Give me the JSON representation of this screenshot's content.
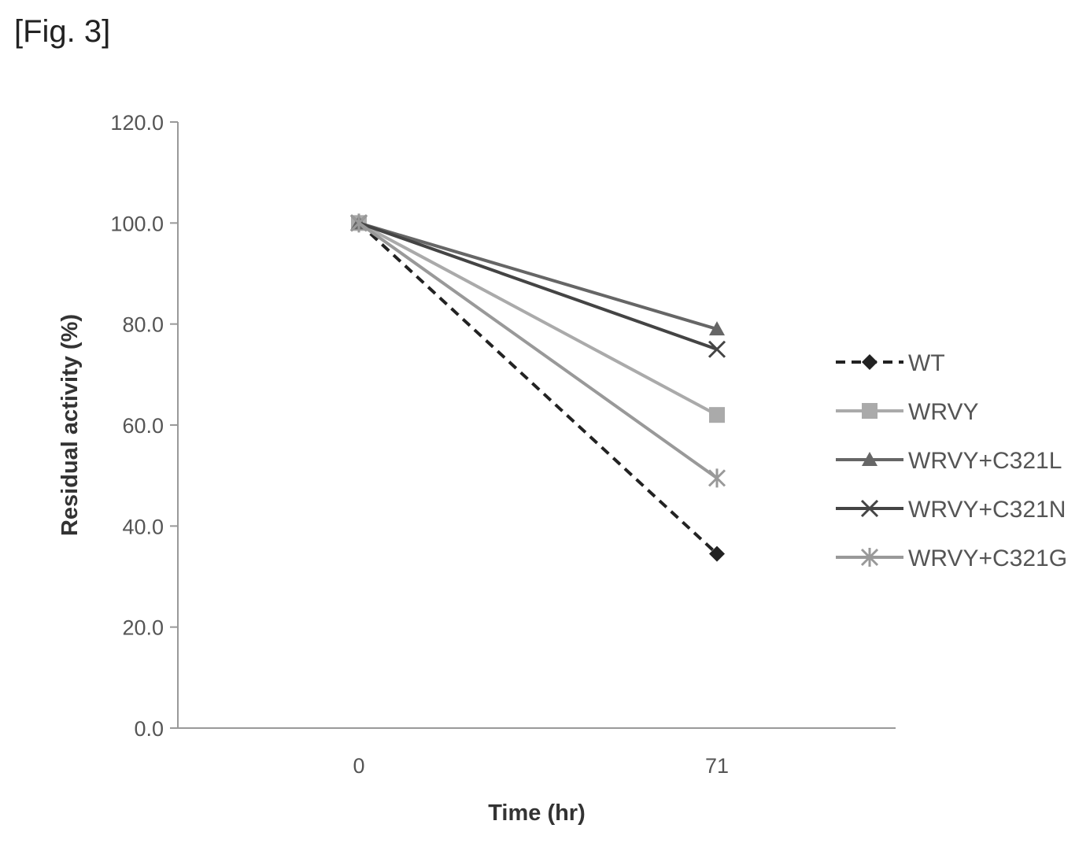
{
  "figure_label": "[Fig. 3]",
  "chart_data": {
    "type": "line",
    "title": "",
    "xlabel": "Time (hr)",
    "ylabel": "Residual activity (%)",
    "categories": [
      "0",
      "71"
    ],
    "ylim": [
      0,
      120
    ],
    "yticks": [
      "0.0",
      "20.0",
      "40.0",
      "60.0",
      "80.0",
      "100.0",
      "120.0"
    ],
    "grid": false,
    "legend_position": "right",
    "series": [
      {
        "name": "WT",
        "values": [
          100.0,
          34.5
        ],
        "color": "#222222",
        "dash": true,
        "marker": "diamond"
      },
      {
        "name": "WRVY",
        "values": [
          100.0,
          62.0
        ],
        "color": "#aaaaaa",
        "dash": false,
        "marker": "square"
      },
      {
        "name": "WRVY+C321L",
        "values": [
          100.0,
          79.0
        ],
        "color": "#666666",
        "dash": false,
        "marker": "triangle"
      },
      {
        "name": "WRVY+C321N",
        "values": [
          100.0,
          75.0
        ],
        "color": "#444444",
        "dash": false,
        "marker": "x"
      },
      {
        "name": "WRVY+C321G",
        "values": [
          100.0,
          49.5
        ],
        "color": "#999999",
        "dash": false,
        "marker": "star"
      }
    ]
  }
}
